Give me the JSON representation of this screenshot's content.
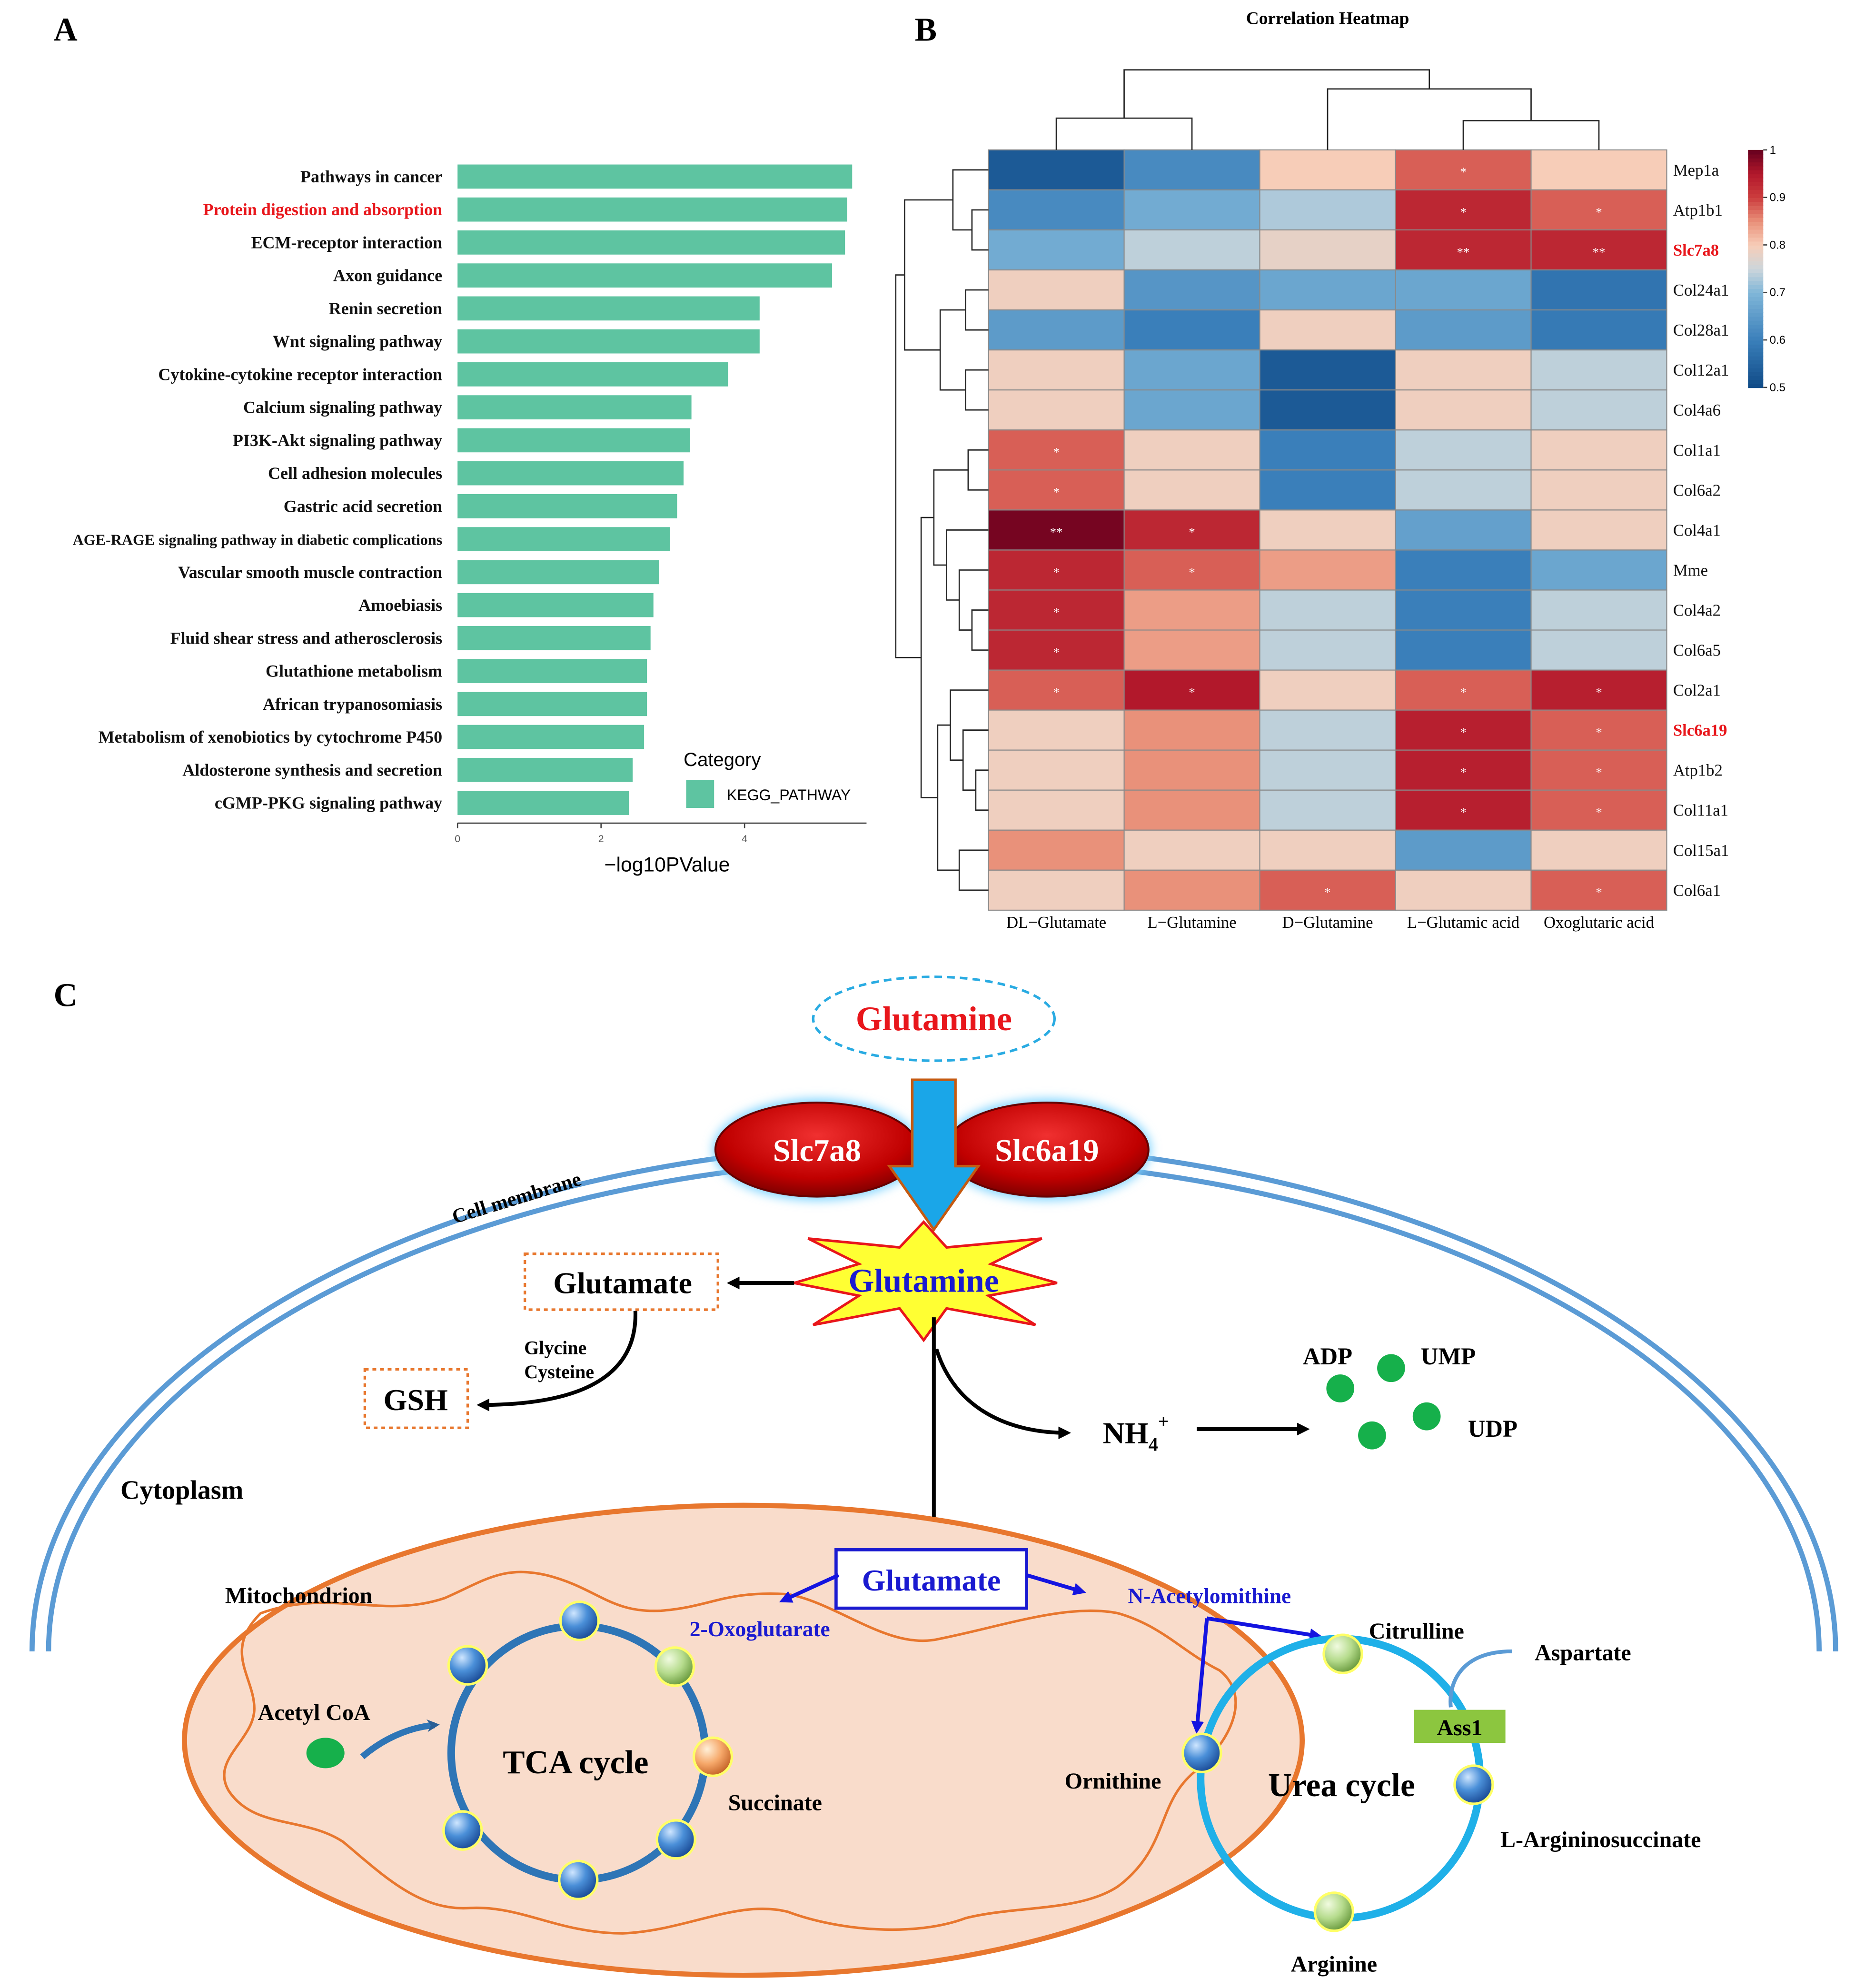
{
  "panels": [
    "A",
    "B",
    "C"
  ],
  "chart_data": [
    {
      "type": "bar",
      "orientation": "horizontal",
      "categories": [
        "Pathways in cancer",
        "Protein digestion and absorption",
        "ECM-receptor interaction",
        "Axon guidance",
        "Renin secretion",
        "Wnt signaling pathway",
        "Cytokine-cytokine receptor interaction",
        "Calcium signaling pathway",
        "PI3K-Akt signaling pathway",
        "Cell adhesion molecules",
        "Gastric acid secretion",
        "AGE-RAGE signaling pathway in diabetic complications",
        "Vascular smooth muscle contraction",
        "Amoebiasis",
        "Fluid shear stress and atherosclerosis",
        "Glutathione metabolism",
        "African trypanosomiasis",
        "Metabolism of xenobiotics by cytochrome P450",
        "Aldosterone synthesis and secretion",
        "cGMP-PKG signaling pathway"
      ],
      "values": [
        5.5,
        5.43,
        5.4,
        5.22,
        4.21,
        4.21,
        3.77,
        3.26,
        3.24,
        3.15,
        3.06,
        2.96,
        2.81,
        2.73,
        2.69,
        2.64,
        2.64,
        2.6,
        2.44,
        2.39
      ],
      "label_colors": [
        "#111111",
        "#e8161b",
        "#111111",
        "#111111",
        "#111111",
        "#111111",
        "#111111",
        "#111111",
        "#111111",
        "#111111",
        "#111111",
        "#111111",
        "#111111",
        "#111111",
        "#111111",
        "#111111",
        "#111111",
        "#111111",
        "#111111",
        "#111111"
      ],
      "color": "#5ec4a1",
      "xlim": [
        0,
        5.7
      ],
      "xticks": [
        0,
        2,
        4
      ],
      "xlabel": "−log10PValue",
      "legend": {
        "title": "Category",
        "label": "KEGG_PATHWAY"
      }
    },
    {
      "type": "heatmap",
      "title": "Correlation Heatmap",
      "columns": [
        "DL−Glutamate",
        "L−Glutamine",
        "D−Glutamine",
        "L−Glutamic acid",
        "Oxoglutaric acid"
      ],
      "rows": [
        "Mep1a",
        "Atp1b1",
        "Slc7a8",
        "Col24a1",
        "Col28a1",
        "Col12a1",
        "Col4a6",
        "Col1a1",
        "Col6a2",
        "Col4a1",
        "Mme",
        "Col4a2",
        "Col6a5",
        "Col2a1",
        "Slc6a19",
        "Atp1b2",
        "Col11a1",
        "Col15a1",
        "Col6a1"
      ],
      "row_label_colors": [
        "#111111",
        "#111111",
        "#e8161b",
        "#111111",
        "#111111",
        "#111111",
        "#111111",
        "#111111",
        "#111111",
        "#111111",
        "#111111",
        "#111111",
        "#111111",
        "#111111",
        "#e8161b",
        "#111111",
        "#111111",
        "#111111",
        "#111111"
      ],
      "values": [
        [
          0.53,
          0.62,
          0.8,
          0.88,
          0.8
        ],
        [
          0.62,
          0.68,
          0.73,
          0.93,
          0.88
        ],
        [
          0.68,
          0.74,
          0.78,
          0.93,
          0.93
        ],
        [
          0.79,
          0.64,
          0.67,
          0.67,
          0.58
        ],
        [
          0.65,
          0.6,
          0.79,
          0.65,
          0.59
        ],
        [
          0.79,
          0.67,
          0.53,
          0.79,
          0.74
        ],
        [
          0.79,
          0.67,
          0.53,
          0.79,
          0.74
        ],
        [
          0.88,
          0.79,
          0.6,
          0.74,
          0.79
        ],
        [
          0.88,
          0.79,
          0.6,
          0.74,
          0.79
        ],
        [
          0.99,
          0.93,
          0.79,
          0.66,
          0.79
        ],
        [
          0.93,
          0.88,
          0.84,
          0.6,
          0.67
        ],
        [
          0.93,
          0.84,
          0.74,
          0.6,
          0.74
        ],
        [
          0.93,
          0.84,
          0.74,
          0.6,
          0.74
        ],
        [
          0.88,
          0.95,
          0.79,
          0.88,
          0.94
        ],
        [
          0.79,
          0.85,
          0.74,
          0.94,
          0.88
        ],
        [
          0.79,
          0.85,
          0.74,
          0.94,
          0.88
        ],
        [
          0.79,
          0.85,
          0.74,
          0.94,
          0.88
        ],
        [
          0.85,
          0.79,
          0.79,
          0.65,
          0.79
        ],
        [
          0.79,
          0.85,
          0.88,
          0.79,
          0.88
        ]
      ],
      "annotations": [
        [
          null,
          null,
          null,
          "*",
          null
        ],
        [
          null,
          null,
          null,
          "*",
          "*"
        ],
        [
          null,
          null,
          null,
          "**",
          "**"
        ],
        [
          null,
          null,
          null,
          null,
          null
        ],
        [
          null,
          null,
          null,
          null,
          null
        ],
        [
          null,
          null,
          null,
          null,
          null
        ],
        [
          null,
          null,
          null,
          null,
          null
        ],
        [
          "*",
          null,
          null,
          null,
          null
        ],
        [
          "*",
          null,
          null,
          null,
          null
        ],
        [
          "**",
          "*",
          null,
          null,
          null
        ],
        [
          "*",
          "*",
          null,
          null,
          null
        ],
        [
          "*",
          null,
          null,
          null,
          null
        ],
        [
          "*",
          null,
          null,
          null,
          null
        ],
        [
          "*",
          "*",
          null,
          "*",
          "*"
        ],
        [
          null,
          null,
          null,
          "*",
          "*"
        ],
        [
          null,
          null,
          null,
          "*",
          "*"
        ],
        [
          null,
          null,
          null,
          "*",
          "*"
        ],
        [
          null,
          null,
          null,
          null,
          null
        ],
        [
          null,
          null,
          "*",
          null,
          "*"
        ]
      ],
      "colorscale": [
        {
          "value": 0.5,
          "color": "#0f4a86"
        },
        {
          "value": 0.6,
          "color": "#3a7fba"
        },
        {
          "value": 0.7,
          "color": "#80b6d8"
        },
        {
          "value": 0.75,
          "color": "#cdd6db"
        },
        {
          "value": 0.8,
          "color": "#f7cdb8"
        },
        {
          "value": 0.85,
          "color": "#e9917a"
        },
        {
          "value": 0.9,
          "color": "#cc3d3e"
        },
        {
          "value": 0.95,
          "color": "#b2182b"
        },
        {
          "value": 1,
          "color": "#67001f"
        }
      ],
      "colorbar_lim": [
        0.5,
        1
      ],
      "colorbar_ticks": [
        0.5,
        0.6,
        0.7,
        0.8,
        0.9,
        1
      ]
    }
  ],
  "diagram": {
    "glutamine_out": "Glutamine",
    "slc7a8": "Slc7a8",
    "slc6a19": "Slc6a19",
    "membrane": "Cell membrane",
    "glutamine_in": "Glutamine",
    "glutamate": "Glutamate",
    "gsh": "GSH",
    "glycine": "Glycine",
    "cysteine": "Cysteine",
    "ammonium": {
      "base": "NH",
      "sub": "4",
      "sup": "+"
    },
    "adp": "ADP",
    "ump": "UMP",
    "udp": "UDP",
    "cytoplasm": "Cytoplasm",
    "mitochondrion": "Mitochondrion",
    "glutamate_mito": "Glutamate",
    "oxoglutarate": "2-Oxoglutarate",
    "acetylornithine": "N-Acetylomithine",
    "acetyl_coa": "Acetyl CoA",
    "tca": "TCA cycle",
    "succinate": "Succinate",
    "citrulline": "Citrulline",
    "aspartate": "Aspartate",
    "ass1": "Ass1",
    "ornithine": "Ornithine",
    "urea": "Urea cycle",
    "argininosuccinate": "L-Argininosuccinate",
    "arginine": "Arginine"
  }
}
